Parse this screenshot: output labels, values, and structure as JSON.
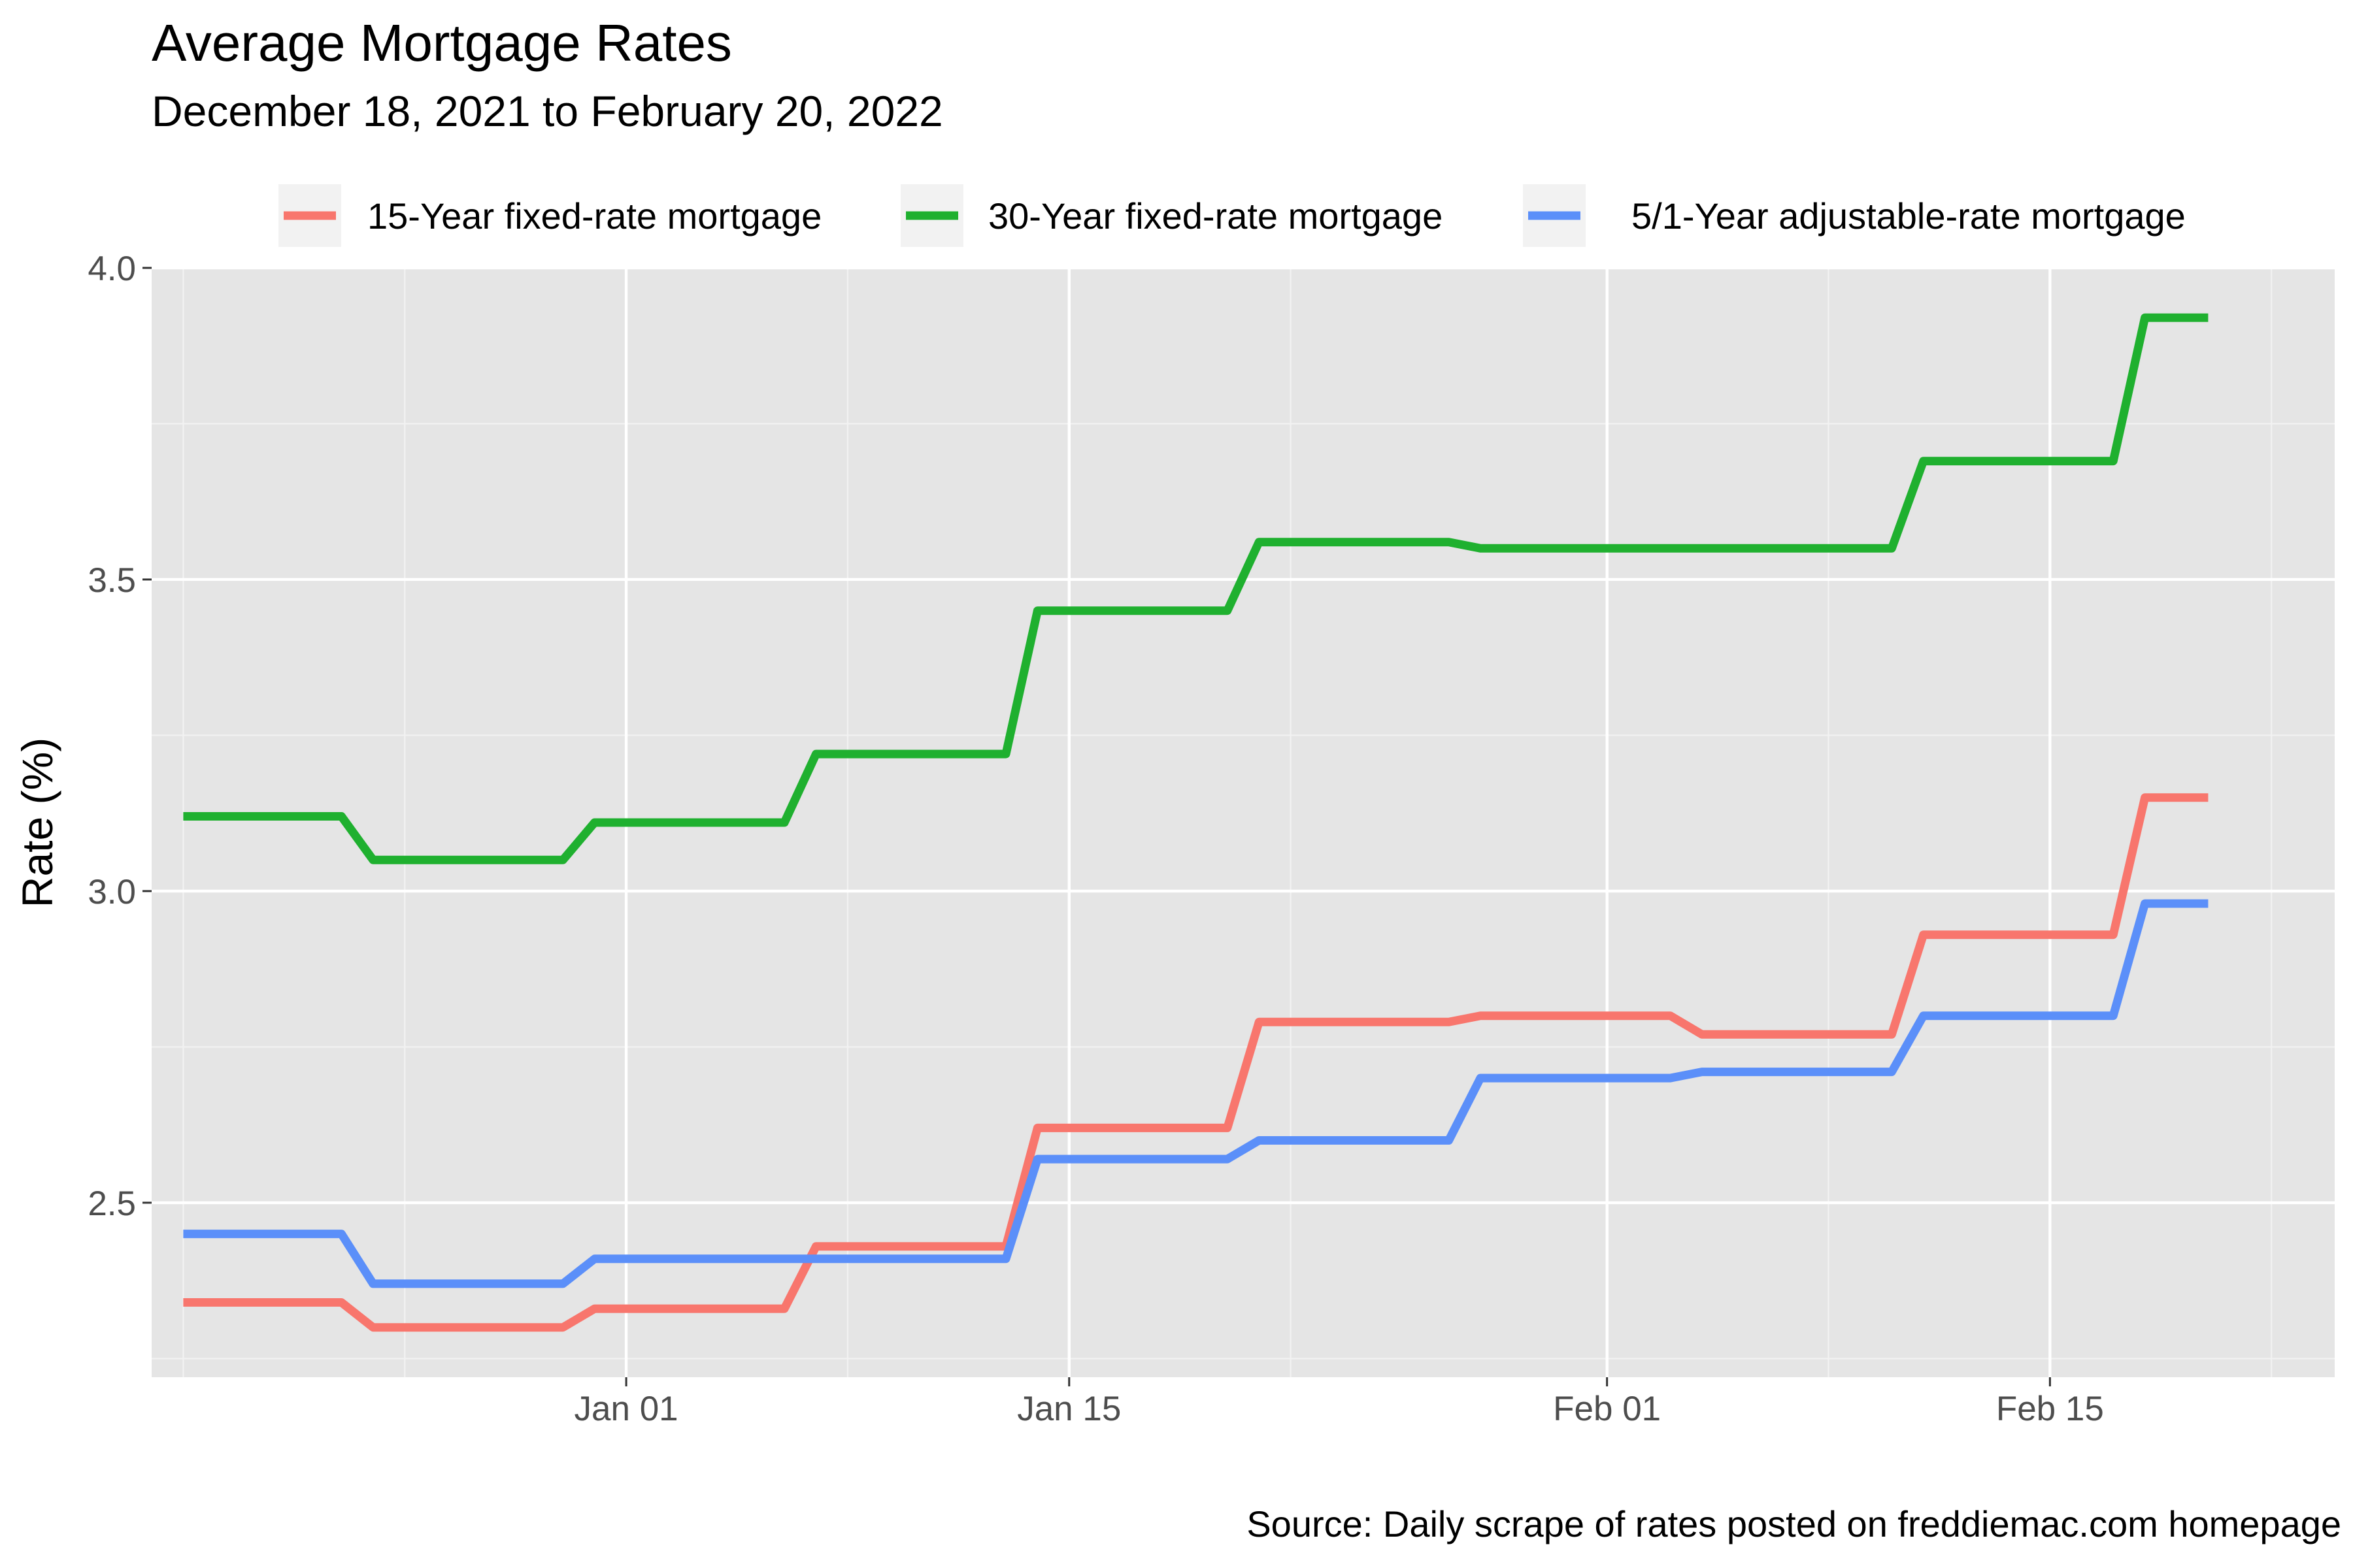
{
  "chart_data": {
    "type": "line",
    "title": "Average Mortgage Rates",
    "subtitle": "December 18, 2021 to February 20, 2022",
    "caption": "Source: Daily scrape of rates posted on freddiemac.com homepage",
    "xlabel": "",
    "ylabel": "Rate (%)",
    "x_type": "date",
    "xlim": [
      "2021-12-17",
      "2022-02-24"
    ],
    "ylim": [
      2.22,
      4.0
    ],
    "x_ticks": [
      {
        "date": "2022-01-01",
        "label": "Jan 01"
      },
      {
        "date": "2022-01-15",
        "label": "Jan 15"
      },
      {
        "date": "2022-02-01",
        "label": "Feb 01"
      },
      {
        "date": "2022-02-15",
        "label": "Feb 15"
      }
    ],
    "x_minor_dates": [
      "2021-12-18",
      "2021-12-25",
      "2022-01-08",
      "2022-01-22",
      "2022-02-08",
      "2022-02-22"
    ],
    "y_ticks": [
      2.5,
      3.0,
      3.5,
      4.0
    ],
    "y_tick_labels": [
      "2.5",
      "3.0",
      "3.5",
      "4.0"
    ],
    "y_minor": [
      2.25,
      2.75,
      3.25,
      3.75
    ],
    "grid": true,
    "panel_background": "#e5e5e5",
    "legend_position": "top",
    "series": [
      {
        "name": "15-Year fixed-rate mortgage",
        "color": "#f8766d",
        "points": [
          [
            "2021-12-18",
            2.34
          ],
          [
            "2021-12-23",
            2.34
          ],
          [
            "2021-12-24",
            2.3
          ],
          [
            "2021-12-30",
            2.3
          ],
          [
            "2021-12-31",
            2.33
          ],
          [
            "2022-01-06",
            2.33
          ],
          [
            "2022-01-07",
            2.43
          ],
          [
            "2022-01-13",
            2.43
          ],
          [
            "2022-01-14",
            2.62
          ],
          [
            "2022-01-20",
            2.62
          ],
          [
            "2022-01-21",
            2.79
          ],
          [
            "2022-01-27",
            2.79
          ],
          [
            "2022-01-28",
            2.8
          ],
          [
            "2022-02-03",
            2.8
          ],
          [
            "2022-02-04",
            2.77
          ],
          [
            "2022-02-10",
            2.77
          ],
          [
            "2022-02-11",
            2.93
          ],
          [
            "2022-02-17",
            2.93
          ],
          [
            "2022-02-18",
            3.15
          ],
          [
            "2022-02-20",
            3.15
          ]
        ]
      },
      {
        "name": "30-Year fixed-rate mortgage",
        "color": "#1fb02f",
        "points": [
          [
            "2021-12-18",
            3.12
          ],
          [
            "2021-12-23",
            3.12
          ],
          [
            "2021-12-24",
            3.05
          ],
          [
            "2021-12-30",
            3.05
          ],
          [
            "2021-12-31",
            3.11
          ],
          [
            "2022-01-06",
            3.11
          ],
          [
            "2022-01-07",
            3.22
          ],
          [
            "2022-01-13",
            3.22
          ],
          [
            "2022-01-14",
            3.45
          ],
          [
            "2022-01-20",
            3.45
          ],
          [
            "2022-01-21",
            3.56
          ],
          [
            "2022-01-27",
            3.56
          ],
          [
            "2022-01-28",
            3.55
          ],
          [
            "2022-02-10",
            3.55
          ],
          [
            "2022-02-11",
            3.69
          ],
          [
            "2022-02-17",
            3.69
          ],
          [
            "2022-02-18",
            3.92
          ],
          [
            "2022-02-20",
            3.92
          ]
        ]
      },
      {
        "name": "5/1-Year adjustable-rate mortgage",
        "color": "#5b8ff9",
        "points": [
          [
            "2021-12-18",
            2.45
          ],
          [
            "2021-12-23",
            2.45
          ],
          [
            "2021-12-24",
            2.37
          ],
          [
            "2021-12-30",
            2.37
          ],
          [
            "2021-12-31",
            2.41
          ],
          [
            "2022-01-13",
            2.41
          ],
          [
            "2022-01-14",
            2.57
          ],
          [
            "2022-01-20",
            2.57
          ],
          [
            "2022-01-21",
            2.6
          ],
          [
            "2022-01-27",
            2.6
          ],
          [
            "2022-01-28",
            2.7
          ],
          [
            "2022-02-03",
            2.7
          ],
          [
            "2022-02-04",
            2.71
          ],
          [
            "2022-02-10",
            2.71
          ],
          [
            "2022-02-11",
            2.8
          ],
          [
            "2022-02-17",
            2.8
          ],
          [
            "2022-02-18",
            2.98
          ],
          [
            "2022-02-20",
            2.98
          ]
        ]
      }
    ]
  }
}
